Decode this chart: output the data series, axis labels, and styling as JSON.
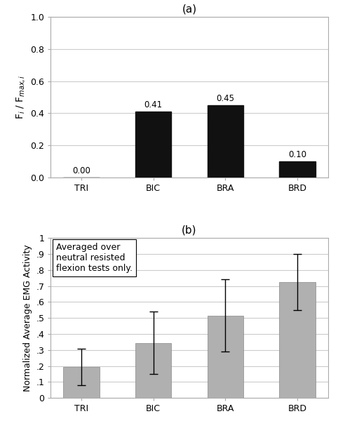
{
  "fig_width": 4.82,
  "fig_height": 6.1,
  "dpi": 100,
  "background_color": "#ffffff",
  "panel_a": {
    "title": "(a)",
    "categories": [
      "TRI",
      "BIC",
      "BRA",
      "BRD"
    ],
    "values": [
      0.0,
      0.41,
      0.45,
      0.1
    ],
    "bar_color": "#111111",
    "bar_width": 0.5,
    "ylim": [
      0.0,
      1.0
    ],
    "yticks": [
      0.0,
      0.2,
      0.4,
      0.6,
      0.8,
      1.0
    ],
    "ytick_labels": [
      "0.0",
      "0.2",
      "0.4",
      "0.6",
      "0.8",
      "1.0"
    ],
    "ylabel": "F$_i$ / F$_{max,i}$",
    "ylabel_fontsize": 10,
    "tick_fontsize": 9,
    "value_fontsize": 8.5,
    "grid_color": "#cccccc"
  },
  "panel_b": {
    "title": "(b)",
    "categories": [
      "TRI",
      "BIC",
      "BRA",
      "BRD"
    ],
    "values": [
      0.195,
      0.345,
      0.515,
      0.725
    ],
    "errors": [
      0.115,
      0.195,
      0.225,
      0.175
    ],
    "bar_color": "#b0b0b0",
    "bar_width": 0.5,
    "ylim": [
      0.0,
      1.0
    ],
    "yticks": [
      0,
      0.1,
      0.2,
      0.3,
      0.4,
      0.5,
      0.6,
      0.7,
      0.8,
      0.9,
      1
    ],
    "ytick_labels": [
      "0",
      ".1",
      ".2",
      ".3",
      ".4",
      ".5",
      ".6",
      ".7",
      ".8",
      ".9",
      "1"
    ],
    "ylabel": "Normalized Average EMG Activity",
    "ylabel_fontsize": 9,
    "tick_fontsize": 9,
    "grid_color": "#cccccc",
    "annotation": "Averaged over\nneutral resisted\nflexion tests only.",
    "annotation_fontsize": 9
  }
}
